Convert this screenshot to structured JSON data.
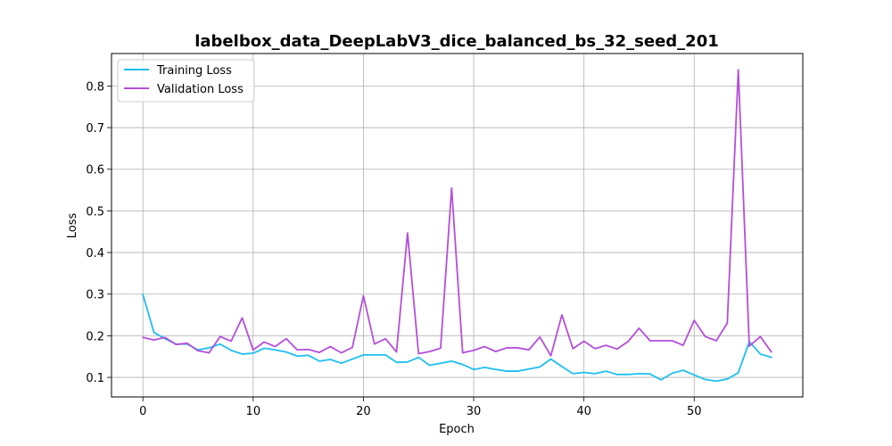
{
  "chart_data": {
    "type": "line",
    "title": "labelbox_data_DeepLabV3_dice_balanced_bs_32_seed_201",
    "xlabel": "Epoch",
    "ylabel": "Loss",
    "xlim": [
      -2.85,
      59.85
    ],
    "ylim": [
      0.053,
      0.878
    ],
    "xticks": [
      0,
      10,
      20,
      30,
      40,
      50
    ],
    "yticks": [
      0.1,
      0.2,
      0.3,
      0.4,
      0.5,
      0.6,
      0.7,
      0.8
    ],
    "grid": true,
    "legend_position": "top-left",
    "series": [
      {
        "name": "Training Loss",
        "color": "#1fbfef",
        "values": [
          0.299,
          0.208,
          0.193,
          0.18,
          0.18,
          0.166,
          0.171,
          0.18,
          0.165,
          0.156,
          0.158,
          0.17,
          0.166,
          0.161,
          0.151,
          0.153,
          0.139,
          0.143,
          0.134,
          0.144,
          0.154,
          0.154,
          0.154,
          0.136,
          0.137,
          0.148,
          0.129,
          0.134,
          0.139,
          0.131,
          0.119,
          0.124,
          0.119,
          0.115,
          0.115,
          0.12,
          0.125,
          0.144,
          0.126,
          0.109,
          0.112,
          0.109,
          0.115,
          0.107,
          0.107,
          0.109,
          0.108,
          0.094,
          0.11,
          0.117,
          0.106,
          0.095,
          0.091,
          0.096,
          0.111,
          0.186,
          0.156,
          0.148
        ]
      },
      {
        "name": "Validation Loss",
        "color": "#b44fdb",
        "values": [
          0.196,
          0.19,
          0.196,
          0.179,
          0.182,
          0.164,
          0.159,
          0.198,
          0.187,
          0.243,
          0.166,
          0.185,
          0.174,
          0.193,
          0.166,
          0.167,
          0.16,
          0.174,
          0.159,
          0.172,
          0.296,
          0.18,
          0.193,
          0.161,
          0.447,
          0.157,
          0.162,
          0.17,
          0.555,
          0.159,
          0.165,
          0.174,
          0.162,
          0.171,
          0.171,
          0.166,
          0.197,
          0.152,
          0.25,
          0.169,
          0.187,
          0.169,
          0.177,
          0.168,
          0.186,
          0.218,
          0.188,
          0.188,
          0.188,
          0.177,
          0.237,
          0.198,
          0.188,
          0.23,
          0.839,
          0.175,
          0.198,
          0.161
        ]
      }
    ]
  }
}
